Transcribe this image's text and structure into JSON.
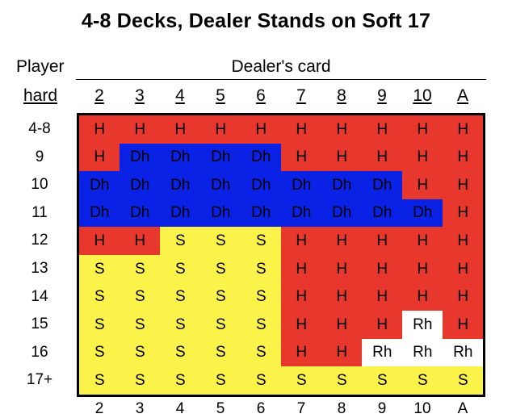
{
  "title": "4-8 Decks, Dealer Stands on Soft 17",
  "header": {
    "player_label": "Player",
    "dealer_label": "Dealer's card",
    "hard_label": "hard"
  },
  "columns": [
    "2",
    "3",
    "4",
    "5",
    "6",
    "7",
    "8",
    "9",
    "10",
    "A"
  ],
  "rows": [
    "4-8",
    "9",
    "10",
    "11",
    "12",
    "13",
    "14",
    "15",
    "16",
    "17+"
  ],
  "colors": {
    "H": "#e8382d",
    "Dh": "#0a22e6",
    "S": "#fbf34a",
    "Rh": "#ffffff"
  },
  "grid": [
    [
      "H",
      "H",
      "H",
      "H",
      "H",
      "H",
      "H",
      "H",
      "H",
      "H"
    ],
    [
      "H",
      "Dh",
      "Dh",
      "Dh",
      "Dh",
      "H",
      "H",
      "H",
      "H",
      "H"
    ],
    [
      "Dh",
      "Dh",
      "Dh",
      "Dh",
      "Dh",
      "Dh",
      "Dh",
      "Dh",
      "H",
      "H"
    ],
    [
      "Dh",
      "Dh",
      "Dh",
      "Dh",
      "Dh",
      "Dh",
      "Dh",
      "Dh",
      "Dh",
      "H"
    ],
    [
      "H",
      "H",
      "S",
      "S",
      "S",
      "H",
      "H",
      "H",
      "H",
      "H"
    ],
    [
      "S",
      "S",
      "S",
      "S",
      "S",
      "H",
      "H",
      "H",
      "H",
      "H"
    ],
    [
      "S",
      "S",
      "S",
      "S",
      "S",
      "H",
      "H",
      "H",
      "H",
      "H"
    ],
    [
      "S",
      "S",
      "S",
      "S",
      "S",
      "H",
      "H",
      "H",
      "Rh",
      "H"
    ],
    [
      "S",
      "S",
      "S",
      "S",
      "S",
      "H",
      "H",
      "Rh",
      "Rh",
      "Rh"
    ],
    [
      "S",
      "S",
      "S",
      "S",
      "S",
      "S",
      "S",
      "S",
      "S",
      "S"
    ]
  ],
  "bottom_peek": [
    "2",
    "3",
    "4",
    "5",
    "6",
    "7",
    "8",
    "9",
    "10",
    "A"
  ]
}
